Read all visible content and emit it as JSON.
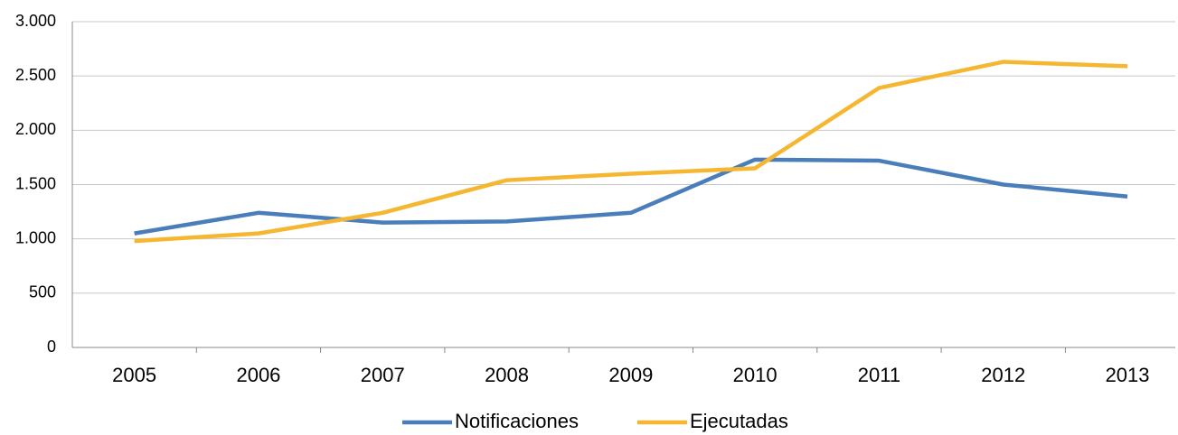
{
  "chart_data": {
    "type": "line",
    "categories": [
      "2005",
      "2006",
      "2007",
      "2008",
      "2009",
      "2010",
      "2011",
      "2012",
      "2013"
    ],
    "series": [
      {
        "name": "Notificaciones",
        "color": "#4a7ebb",
        "values": [
          1050,
          1240,
          1150,
          1160,
          1240,
          1730,
          1720,
          1500,
          1390
        ]
      },
      {
        "name": "Ejecutadas",
        "color": "#f5b731",
        "values": [
          980,
          1050,
          1240,
          1540,
          1600,
          1650,
          2390,
          2630,
          2590
        ]
      }
    ],
    "ylim": [
      0,
      3000
    ],
    "yticks": [
      0,
      500,
      {
        "value": 1000,
        "label": "1.000"
      },
      {
        "value": 1500,
        "label": "1.500"
      },
      {
        "value": 2000,
        "label": "2.000"
      },
      {
        "value": 2500,
        "label": "2.500"
      },
      {
        "value": 3000,
        "label": "3.000"
      }
    ],
    "grid": true,
    "legend": "bottom"
  }
}
